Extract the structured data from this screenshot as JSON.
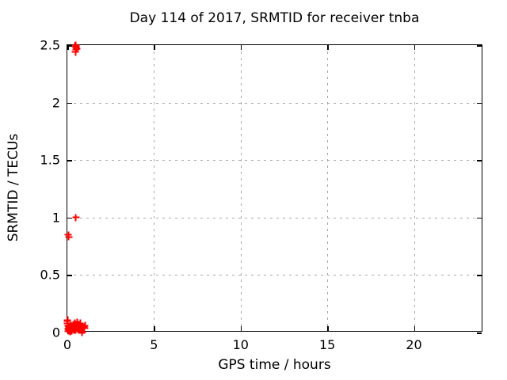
{
  "chart_data": {
    "type": "scatter",
    "title": "Day 114 of 2017, SRMTID for receiver tnba",
    "xlabel": "GPS time / hours",
    "ylabel": "SRMTID / TECUs",
    "xlim": [
      0,
      24
    ],
    "ylim": [
      0,
      2.5
    ],
    "xticks": {
      "values": [
        0,
        5,
        10,
        15,
        20
      ],
      "labels": [
        "0",
        "5",
        "10",
        "15",
        "20"
      ]
    },
    "yticks": {
      "values": [
        0,
        0.5,
        1,
        1.5,
        2,
        2.5
      ],
      "labels": [
        "0",
        "0.5",
        "1",
        "1.5",
        "2",
        "2.5"
      ]
    },
    "grid": true,
    "legend_position": "none",
    "marker": "plus",
    "colors": {
      "marker": "#ff0000",
      "grid": "#a8a8a8",
      "frame": "#000000",
      "text": "#000000"
    },
    "series": [
      {
        "name": "SRMTID",
        "points": [
          [
            0.44,
            2.49
          ],
          [
            0.5,
            2.5
          ],
          [
            0.55,
            2.47
          ],
          [
            0.49,
            2.46
          ],
          [
            0.52,
            2.48
          ],
          [
            0.47,
            2.44
          ],
          [
            0.5,
            1.0
          ],
          [
            0.05,
            0.85
          ],
          [
            0.08,
            0.83
          ],
          [
            0.0,
            0.08
          ],
          [
            0.01,
            0.11
          ],
          [
            0.02,
            0.1
          ],
          [
            0.03,
            0.06
          ],
          [
            0.04,
            0.03
          ],
          [
            0.05,
            0.012
          ],
          [
            0.07,
            0.05
          ],
          [
            0.08,
            0.02
          ],
          [
            0.1,
            0.04
          ],
          [
            0.12,
            0.015
          ],
          [
            0.13,
            0.055
          ],
          [
            0.15,
            0.03
          ],
          [
            0.17,
            0.01
          ],
          [
            0.18,
            0.045
          ],
          [
            0.2,
            0.025
          ],
          [
            0.22,
            0.06
          ],
          [
            0.25,
            0.035
          ],
          [
            0.27,
            0.015
          ],
          [
            0.3,
            0.05
          ],
          [
            0.32,
            0.03
          ],
          [
            0.35,
            0.07
          ],
          [
            0.37,
            0.02
          ],
          [
            0.4,
            0.045
          ],
          [
            0.42,
            0.08
          ],
          [
            0.45,
            0.03
          ],
          [
            0.47,
            0.055
          ],
          [
            0.5,
            0.02
          ],
          [
            0.52,
            0.065
          ],
          [
            0.55,
            0.04
          ],
          [
            0.57,
            0.09
          ],
          [
            0.6,
            0.05
          ],
          [
            0.62,
            0.03
          ],
          [
            0.65,
            0.07
          ],
          [
            0.67,
            0.045
          ],
          [
            0.7,
            0.06
          ],
          [
            0.72,
            0.025
          ],
          [
            0.75,
            0.08
          ],
          [
            0.78,
            0.05
          ],
          [
            0.8,
            0.035
          ],
          [
            0.83,
            0.0
          ],
          [
            0.85,
            0.005
          ],
          [
            0.88,
            0.04
          ],
          [
            0.9,
            0.055
          ],
          [
            0.95,
            0.045
          ],
          [
            1.0,
            0.04
          ],
          [
            1.02,
            0.06
          ]
        ]
      }
    ]
  }
}
